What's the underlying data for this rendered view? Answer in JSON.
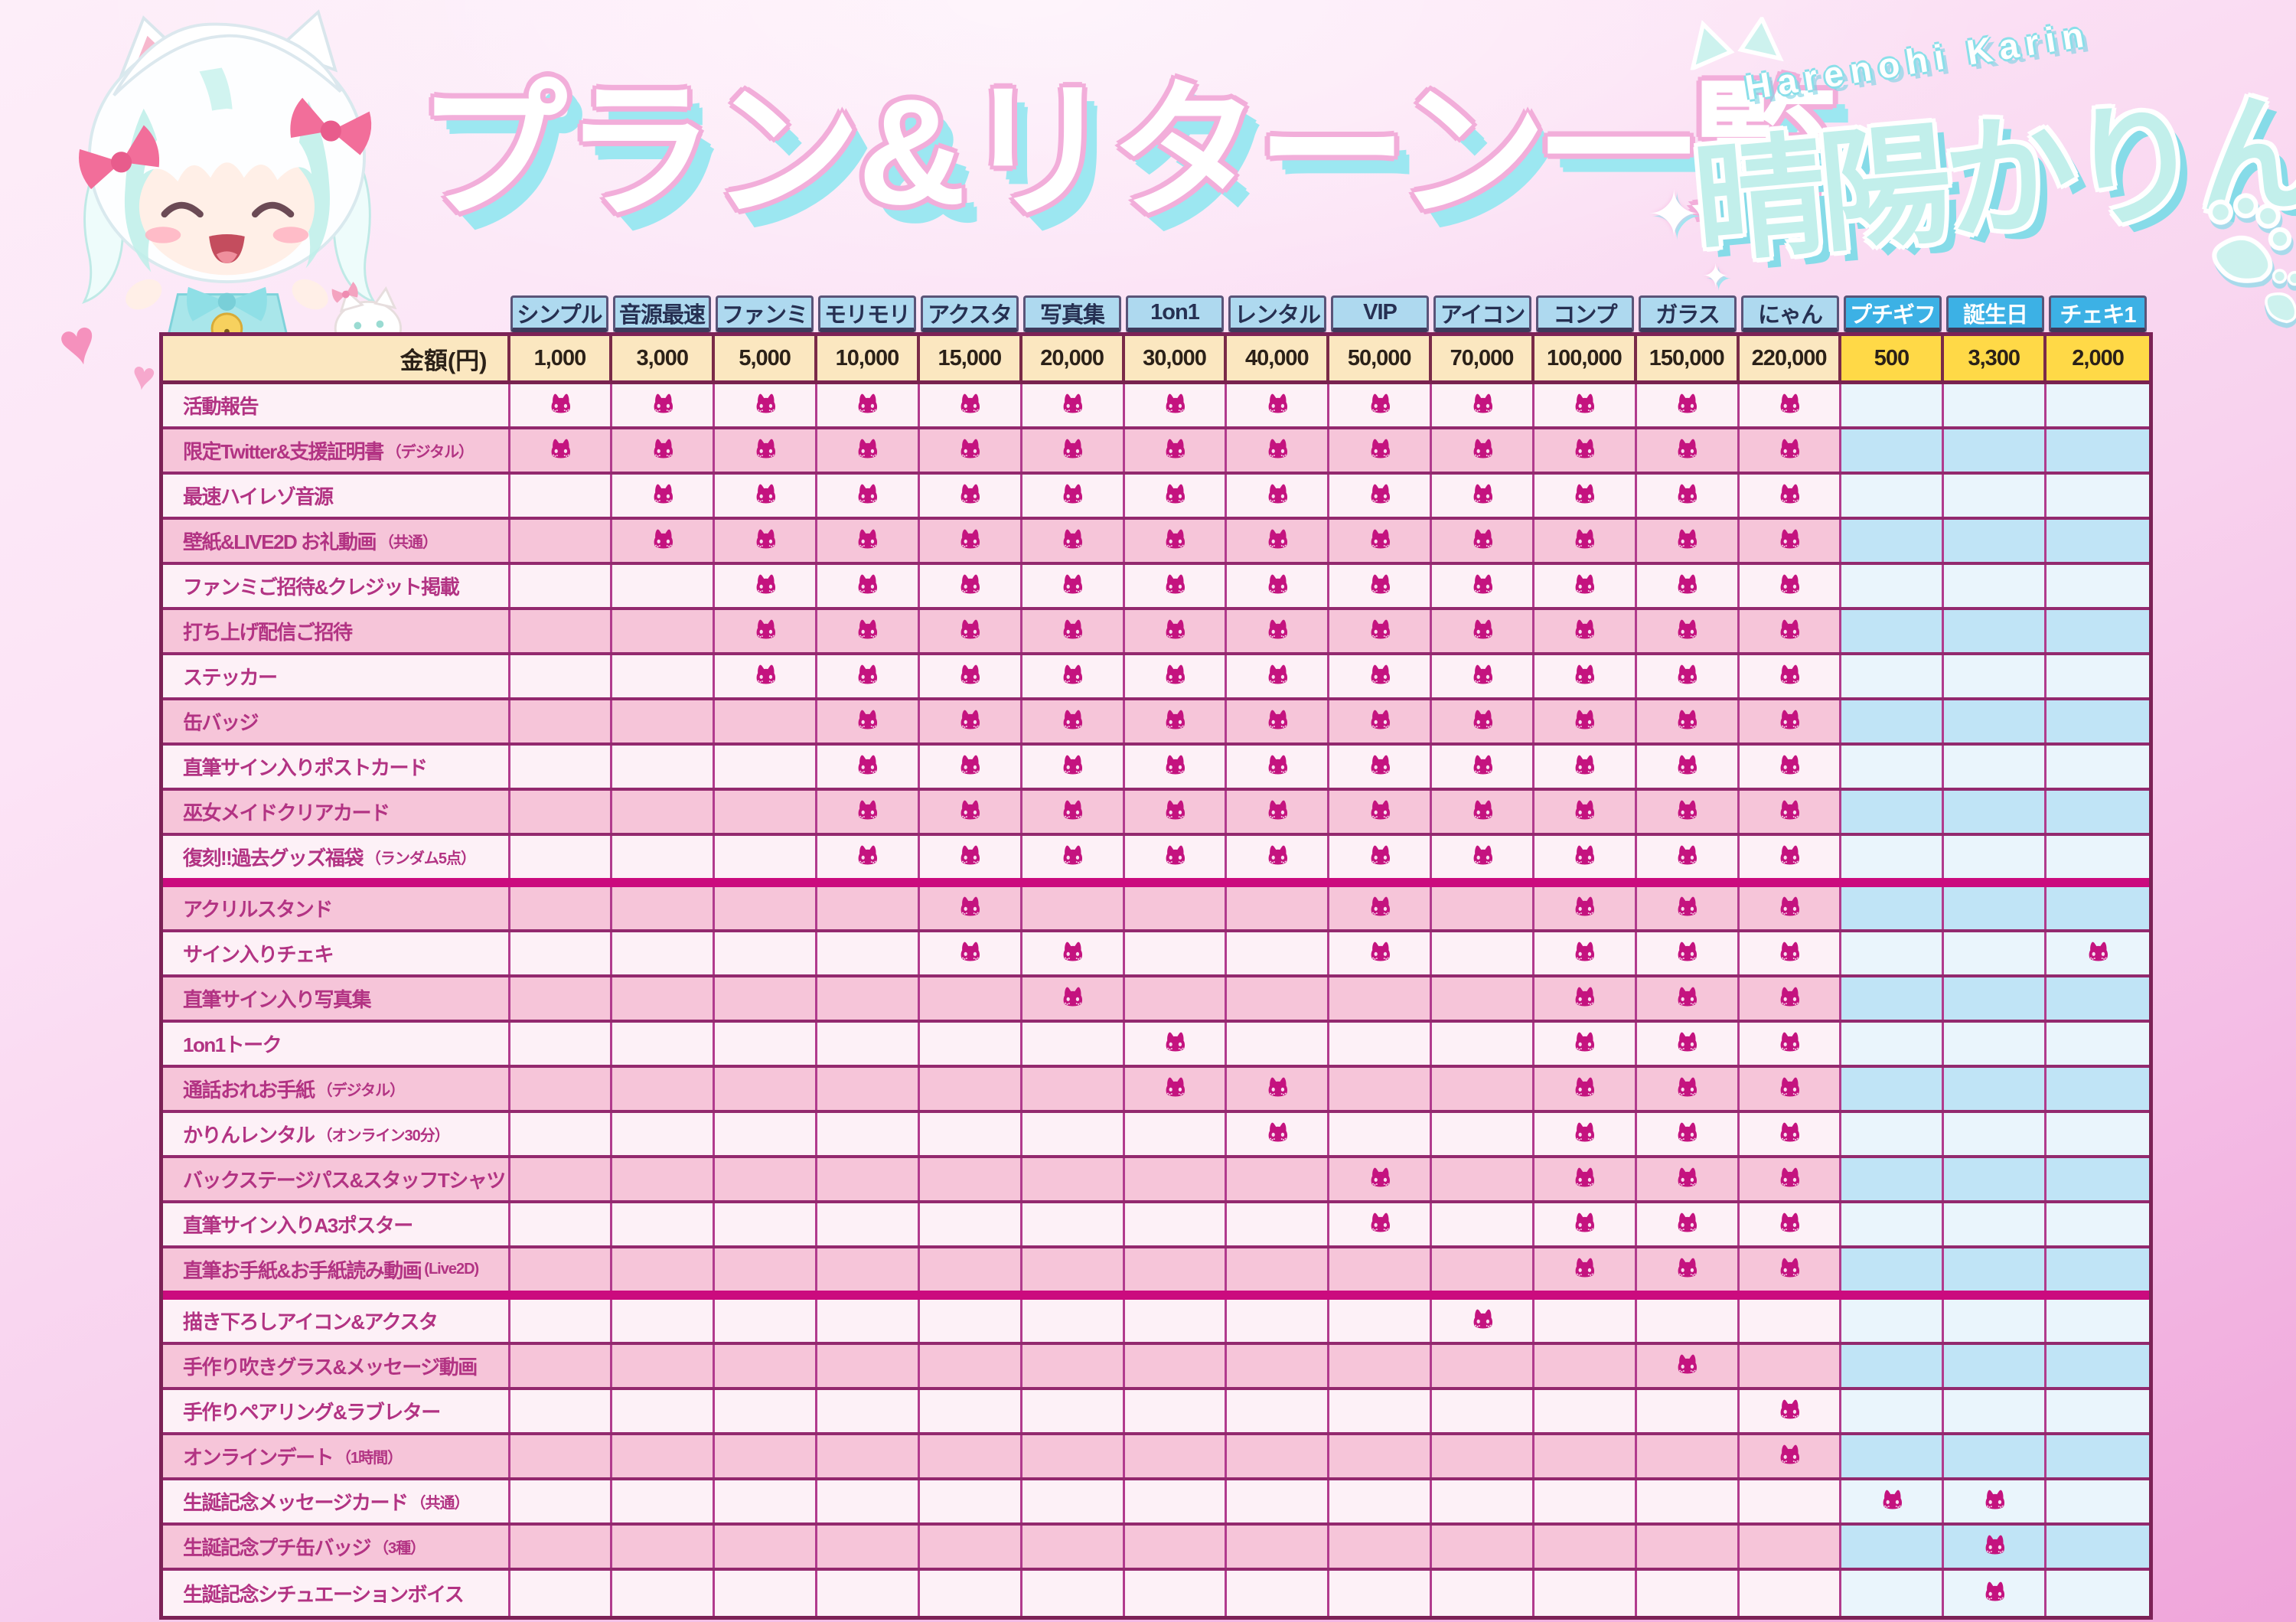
{
  "page": {
    "title": "プラン&リターン一覧",
    "sparkle": "✦"
  },
  "logo": {
    "en": "Harenohi Karin",
    "jp": "晴陽かりん"
  },
  "mascot": {
    "name": "chibi-karin",
    "heart": "♥"
  },
  "table": {
    "price_row_label": "金額(円)",
    "check_icon": "cat-icon",
    "plans": [
      {
        "name": "シンプル",
        "price": "1,000",
        "tier": "main"
      },
      {
        "name": "音源最速",
        "price": "3,000",
        "tier": "main"
      },
      {
        "name": "ファンミ",
        "price": "5,000",
        "tier": "main"
      },
      {
        "name": "モリモリ",
        "price": "10,000",
        "tier": "main"
      },
      {
        "name": "アクスタ",
        "price": "15,000",
        "tier": "main"
      },
      {
        "name": "写真集",
        "price": "20,000",
        "tier": "main"
      },
      {
        "name": "1on1",
        "price": "30,000",
        "tier": "main"
      },
      {
        "name": "レンタル",
        "price": "40,000",
        "tier": "main"
      },
      {
        "name": "VIP",
        "price": "50,000",
        "tier": "main"
      },
      {
        "name": "アイコン",
        "price": "70,000",
        "tier": "main"
      },
      {
        "name": "コンプ",
        "price": "100,000",
        "tier": "main"
      },
      {
        "name": "ガラス",
        "price": "150,000",
        "tier": "main"
      },
      {
        "name": "にゃん",
        "price": "220,000",
        "tier": "main"
      },
      {
        "name": "プチギフ",
        "price": "500",
        "tier": "special"
      },
      {
        "name": "誕生日",
        "price": "3,300",
        "tier": "special"
      },
      {
        "name": "チェキ1",
        "price": "2,000",
        "tier": "special"
      }
    ],
    "rows": [
      {
        "label": "活動報告",
        "note": "",
        "cats": [
          1,
          2,
          3,
          4,
          5,
          6,
          7,
          8,
          9,
          10,
          11,
          12,
          13
        ],
        "thick_after": false
      },
      {
        "label": "限定Twitter&支援証明書",
        "note": "（デジタル）",
        "cats": [
          1,
          2,
          3,
          4,
          5,
          6,
          7,
          8,
          9,
          10,
          11,
          12,
          13
        ],
        "thick_after": false
      },
      {
        "label": "最速ハイレゾ音源",
        "note": "",
        "cats": [
          2,
          3,
          4,
          5,
          6,
          7,
          8,
          9,
          10,
          11,
          12,
          13
        ],
        "thick_after": false
      },
      {
        "label": "壁紙&LIVE2D お礼動画",
        "note": "（共通）",
        "cats": [
          2,
          3,
          4,
          5,
          6,
          7,
          8,
          9,
          10,
          11,
          12,
          13
        ],
        "thick_after": false
      },
      {
        "label": "ファンミご招待&クレジット掲載",
        "note": "",
        "cats": [
          3,
          4,
          5,
          6,
          7,
          8,
          9,
          10,
          11,
          12,
          13
        ],
        "thick_after": false
      },
      {
        "label": "打ち上げ配信ご招待",
        "note": "",
        "cats": [
          3,
          4,
          5,
          6,
          7,
          8,
          9,
          10,
          11,
          12,
          13
        ],
        "thick_after": false
      },
      {
        "label": "ステッカー",
        "note": "",
        "cats": [
          3,
          4,
          5,
          6,
          7,
          8,
          9,
          10,
          11,
          12,
          13
        ],
        "thick_after": false
      },
      {
        "label": "缶バッジ",
        "note": "",
        "cats": [
          4,
          5,
          6,
          7,
          8,
          9,
          10,
          11,
          12,
          13
        ],
        "thick_after": false
      },
      {
        "label": "直筆サイン入りポストカード",
        "note": "",
        "cats": [
          4,
          5,
          6,
          7,
          8,
          9,
          10,
          11,
          12,
          13
        ],
        "thick_after": false
      },
      {
        "label": "巫女メイドクリアカード",
        "note": "",
        "cats": [
          4,
          5,
          6,
          7,
          8,
          9,
          10,
          11,
          12,
          13
        ],
        "thick_after": false
      },
      {
        "label": "復刻!!過去グッズ福袋",
        "note": "（ランダム5点）",
        "cats": [
          4,
          5,
          6,
          7,
          8,
          9,
          10,
          11,
          12,
          13
        ],
        "thick_after": true
      },
      {
        "label": "アクリルスタンド",
        "note": "",
        "cats": [
          5,
          9,
          11,
          12,
          13
        ],
        "thick_after": false
      },
      {
        "label": "サイン入りチェキ",
        "note": "",
        "cats": [
          5,
          6,
          9,
          11,
          12,
          13,
          16
        ],
        "thick_after": false
      },
      {
        "label": "直筆サイン入り写真集",
        "note": "",
        "cats": [
          6,
          11,
          12,
          13
        ],
        "thick_after": false
      },
      {
        "label": "1on1トーク",
        "note": "",
        "cats": [
          7,
          11,
          12,
          13
        ],
        "thick_after": false
      },
      {
        "label": "通話おれお手紙",
        "note": "（デジタル）",
        "cats": [
          7,
          8,
          11,
          12,
          13
        ],
        "thick_after": false
      },
      {
        "label": "かりんレンタル",
        "note": "（オンライン30分）",
        "cats": [
          8,
          11,
          12,
          13
        ],
        "thick_after": false
      },
      {
        "label": "バックステージパス&スタッフTシャツ",
        "note": "",
        "cats": [
          9,
          11,
          12,
          13
        ],
        "thick_after": false
      },
      {
        "label": "直筆サイン入りA3ポスター",
        "note": "",
        "cats": [
          9,
          11,
          12,
          13
        ],
        "thick_after": false
      },
      {
        "label": "直筆お手紙&お手紙読み動画",
        "note": "(Live2D)",
        "cats": [
          11,
          12,
          13
        ],
        "thick_after": true
      },
      {
        "label": "描き下ろしアイコン&アクスタ",
        "note": "",
        "cats": [
          10
        ],
        "thick_after": false
      },
      {
        "label": "手作り吹きグラス&メッセージ動画",
        "note": "",
        "cats": [
          12
        ],
        "thick_after": false
      },
      {
        "label": "手作りペアリング&ラブレター",
        "note": "",
        "cats": [
          13
        ],
        "thick_after": false
      },
      {
        "label": "オンラインデート",
        "note": "（1時間）",
        "cats": [
          13
        ],
        "thick_after": false
      },
      {
        "label": "生誕記念メッセージカード",
        "note": "（共通）",
        "cats": [
          14,
          15
        ],
        "thick_after": false
      },
      {
        "label": "生誕記念プチ缶バッジ",
        "note": "（3種）",
        "cats": [
          15
        ],
        "thick_after": false
      },
      {
        "label": "生誕記念シチュエーションボイス",
        "note": "",
        "cats": [
          15
        ],
        "thick_after": false
      }
    ]
  },
  "colors": {
    "header_blue": "#aed9ef",
    "header_text": "#263052",
    "special_header_blue": "#3cb1e5",
    "price_cream": "#fbe7c0",
    "price_yellow": "#ffd947",
    "row_white": "#fdf1f7",
    "row_pink": "#f6c5d9",
    "special_pale": "#eaf5fc",
    "special_blue": "#c0e4f6",
    "label_text": "#b23383",
    "cat": "#c4137f",
    "grid_v": "#b13b8d",
    "grid_h": "#93296e",
    "thick": "#cb0b7e"
  }
}
